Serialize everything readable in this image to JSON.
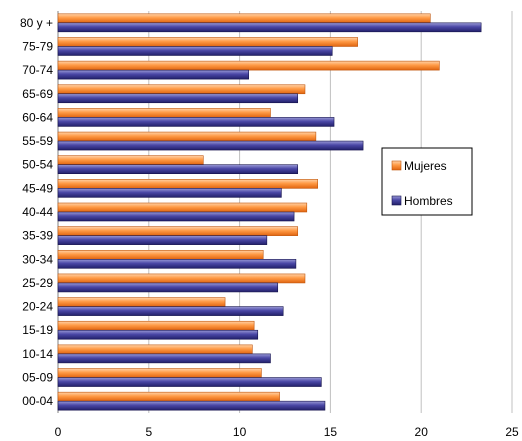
{
  "chart_data": {
    "type": "bar",
    "orientation": "horizontal",
    "categories": [
      "80 y +",
      "75-79",
      "70-74",
      "65-69",
      "60-64",
      "55-59",
      "50-54",
      "45-49",
      "40-44",
      "35-39",
      "30-34",
      "25-29",
      "20-24",
      "15-19",
      "10-14",
      "05-09",
      "00-04"
    ],
    "series": [
      {
        "name": "Mujeres",
        "color": "#ff8c33",
        "values": [
          20.5,
          16.5,
          21.0,
          13.6,
          11.7,
          14.2,
          8.0,
          14.3,
          13.7,
          13.2,
          11.3,
          13.6,
          9.2,
          10.8,
          10.7,
          11.2,
          12.2
        ]
      },
      {
        "name": "Hombres",
        "color": "#3d3a94",
        "values": [
          23.3,
          15.1,
          10.5,
          13.2,
          15.2,
          16.8,
          13.2,
          12.3,
          13.0,
          11.5,
          13.1,
          12.1,
          12.4,
          11.0,
          11.7,
          14.5,
          14.7
        ]
      }
    ],
    "xlim": [
      0,
      25
    ],
    "xticks": [
      "0",
      "5",
      "10",
      "15",
      "20",
      "25"
    ],
    "grid": "vertical",
    "legend": "right"
  }
}
